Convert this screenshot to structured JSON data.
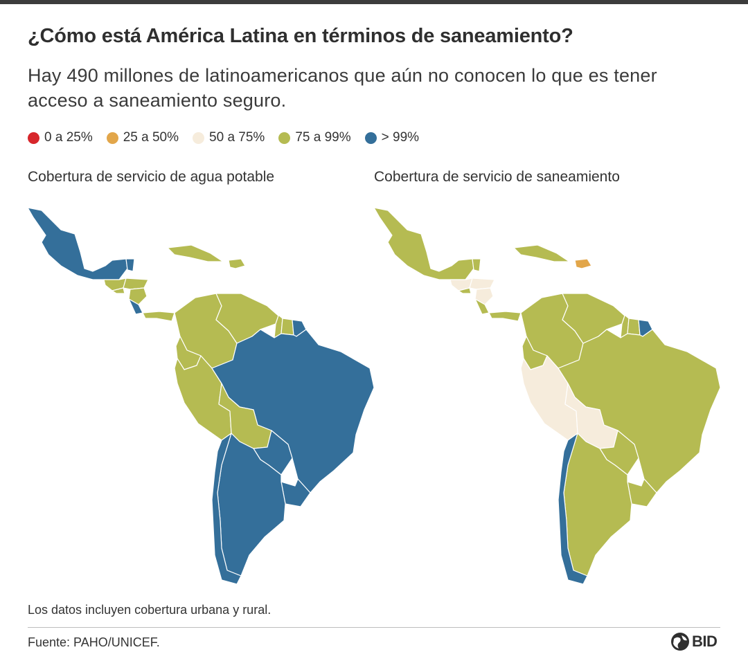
{
  "title": "¿Cómo está América Latina en términos de saneamiento?",
  "subtitle": "Hay 490 millones de latinoamericanos que aún no conocen lo que es tener acceso a saneamiento seguro.",
  "legend": [
    {
      "label": "0 a 25%",
      "color": "#d7262b"
    },
    {
      "label": "25 a 50%",
      "color": "#e2a64a"
    },
    {
      "label": "50 a 75%",
      "color": "#f6ecdc"
    },
    {
      "label": "75 a 99%",
      "color": "#b5bb52"
    },
    {
      "label": "> 99%",
      "color": "#346f9a"
    }
  ],
  "maps": {
    "water": {
      "title": "Cobertura de servicio de agua potable",
      "regions": {
        "mexico": "> 99%",
        "guatemala": "75 a 99%",
        "belize": "> 99%",
        "honduras": "75 a 99%",
        "el-salvador": "75 a 99%",
        "nicaragua": "75 a 99%",
        "costa-rica": "> 99%",
        "panama": "75 a 99%",
        "cuba": "75 a 99%",
        "dominican-republic": "75 a 99%",
        "colombia": "75 a 99%",
        "venezuela": "75 a 99%",
        "guyana": "75 a 99%",
        "suriname": "75 a 99%",
        "french-guiana": "> 99%",
        "ecuador": "75 a 99%",
        "peru": "75 a 99%",
        "brazil": "> 99%",
        "bolivia": "75 a 99%",
        "paraguay": "> 99%",
        "chile": "> 99%",
        "argentina": "> 99%",
        "uruguay": "> 99%"
      }
    },
    "sanitation": {
      "title": "Cobertura de servicio de saneamiento",
      "regions": {
        "mexico": "75 a 99%",
        "guatemala": "50 a 75%",
        "belize": "75 a 99%",
        "honduras": "50 a 75%",
        "el-salvador": "75 a 99%",
        "nicaragua": "50 a 75%",
        "costa-rica": "75 a 99%",
        "panama": "75 a 99%",
        "cuba": "75 a 99%",
        "dominican-republic": "25 a 50%",
        "colombia": "75 a 99%",
        "venezuela": "75 a 99%",
        "guyana": "75 a 99%",
        "suriname": "75 a 99%",
        "french-guiana": "> 99%",
        "ecuador": "75 a 99%",
        "peru": "50 a 75%",
        "brazil": "75 a 99%",
        "bolivia": "50 a 75%",
        "paraguay": "75 a 99%",
        "chile": "> 99%",
        "argentina": "75 a 99%",
        "uruguay": "75 a 99%"
      }
    }
  },
  "note": "Los datos incluyen cobertura urbana y rural.",
  "source": "Fuente: PAHO/UNICEF.",
  "logo_text": "BID"
}
